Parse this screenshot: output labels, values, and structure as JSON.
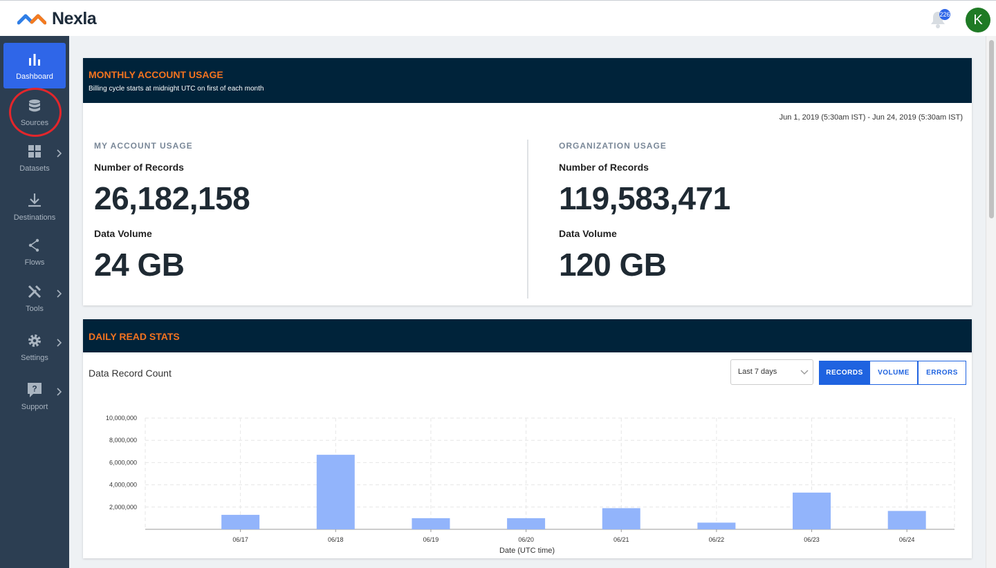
{
  "brand": {
    "name": "Nexla"
  },
  "header": {
    "notification_count": "226",
    "avatar_initial": "K"
  },
  "sidebar": {
    "items": [
      {
        "label": "Dashboard"
      },
      {
        "label": "Sources"
      },
      {
        "label": "Datasets"
      },
      {
        "label": "Destinations"
      },
      {
        "label": "Flows"
      },
      {
        "label": "Tools"
      },
      {
        "label": "Settings"
      },
      {
        "label": "Support"
      }
    ]
  },
  "usage": {
    "title": "MONTHLY ACCOUNT USAGE",
    "subtitle": "Billing cycle starts at midnight UTC on first of each month",
    "date_range": "Jun 1, 2019 (5:30am IST) - Jun 24, 2019 (5:30am IST)",
    "account": {
      "title": "MY ACCOUNT USAGE",
      "records_label": "Number of Records",
      "records": "26,182,158",
      "volume_label": "Data Volume",
      "volume": "24 GB"
    },
    "org": {
      "title": "ORGANIZATION USAGE",
      "records_label": "Number of Records",
      "records": "119,583,471",
      "volume_label": "Data Volume",
      "volume": "120 GB"
    }
  },
  "stats": {
    "title": "DAILY READ STATS",
    "chart_title": "Data Record Count",
    "range": "Last 7 days",
    "buttons": {
      "records": "RECORDS",
      "volume": "VOLUME",
      "errors": "ERRORS"
    }
  },
  "colors": {
    "accent": "#2f66e8",
    "header_bg": "#00233a",
    "title_orange": "#f4731f",
    "bar": "#92b4fb"
  },
  "chart_data": {
    "type": "bar",
    "categories": [
      "06/17",
      "06/18",
      "06/19",
      "06/20",
      "06/21",
      "06/22",
      "06/23",
      "06/24"
    ],
    "values": [
      1300000,
      6700000,
      1000000,
      1000000,
      1900000,
      600000,
      3300000,
      1650000
    ],
    "yticks": [
      2000000,
      4000000,
      6000000,
      8000000,
      10000000
    ],
    "ytick_labels": [
      "2,000,000",
      "4,000,000",
      "6,000,000",
      "8,000,000",
      "10,000,000"
    ],
    "ylim": [
      0,
      10000000
    ],
    "xlabel": "Date (UTC time)",
    "ylabel": "",
    "grid": true
  }
}
